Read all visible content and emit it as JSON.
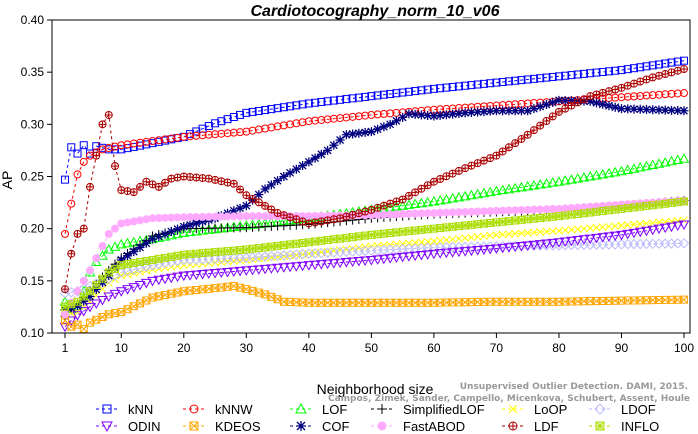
{
  "chart_data": {
    "type": "line",
    "title": "Cardiotocography_norm_10_v06",
    "xlabel": "Neighborhood size",
    "ylabel": "AP",
    "xlim": [
      1,
      100
    ],
    "ylim": [
      0.1,
      0.4
    ],
    "xticks": [
      "1",
      "10",
      "20",
      "30",
      "40",
      "50",
      "60",
      "70",
      "80",
      "90",
      "100"
    ],
    "yticks": [
      "0.10",
      "0.15",
      "0.20",
      "0.25",
      "0.30",
      "0.35",
      "0.40"
    ],
    "grid": false,
    "legend_position": "bottom",
    "series": [
      {
        "name": "kNN",
        "color": "#0000ff",
        "marker": "square",
        "points": [
          [
            1,
            0.247
          ],
          [
            2,
            0.278
          ],
          [
            3,
            0.272
          ],
          [
            4,
            0.28
          ],
          [
            5,
            0.272
          ],
          [
            6,
            0.279
          ],
          [
            8,
            0.276
          ],
          [
            10,
            0.276
          ],
          [
            15,
            0.282
          ],
          [
            20,
            0.288
          ],
          [
            25,
            0.301
          ],
          [
            30,
            0.311
          ],
          [
            40,
            0.32
          ],
          [
            50,
            0.327
          ],
          [
            60,
            0.334
          ],
          [
            70,
            0.34
          ],
          [
            80,
            0.346
          ],
          [
            90,
            0.352
          ],
          [
            100,
            0.361
          ]
        ]
      },
      {
        "name": "kNNW",
        "color": "#ff0000",
        "marker": "circle",
        "points": [
          [
            1,
            0.195
          ],
          [
            2,
            0.224
          ],
          [
            3,
            0.252
          ],
          [
            4,
            0.264
          ],
          [
            5,
            0.27
          ],
          [
            7,
            0.276
          ],
          [
            10,
            0.28
          ],
          [
            15,
            0.284
          ],
          [
            20,
            0.288
          ],
          [
            30,
            0.293
          ],
          [
            40,
            0.303
          ],
          [
            50,
            0.309
          ],
          [
            60,
            0.314
          ],
          [
            70,
            0.318
          ],
          [
            80,
            0.322
          ],
          [
            90,
            0.326
          ],
          [
            100,
            0.33
          ]
        ]
      },
      {
        "name": "LOF",
        "color": "#00ff00",
        "marker": "triangle-up",
        "points": [
          [
            1,
            0.13
          ],
          [
            2,
            0.123
          ],
          [
            3,
            0.126
          ],
          [
            4,
            0.14
          ],
          [
            5,
            0.158
          ],
          [
            6,
            0.168
          ],
          [
            8,
            0.18
          ],
          [
            10,
            0.185
          ],
          [
            15,
            0.19
          ],
          [
            20,
            0.196
          ],
          [
            30,
            0.203
          ],
          [
            40,
            0.21
          ],
          [
            50,
            0.218
          ],
          [
            60,
            0.226
          ],
          [
            70,
            0.236
          ],
          [
            80,
            0.245
          ],
          [
            90,
            0.255
          ],
          [
            100,
            0.267
          ]
        ]
      },
      {
        "name": "SimplifiedLOF",
        "color": "#000000",
        "marker": "plus",
        "points": [
          [
            1,
            0.116
          ],
          [
            2,
            0.122
          ],
          [
            3,
            0.128
          ],
          [
            5,
            0.141
          ],
          [
            8,
            0.16
          ],
          [
            10,
            0.172
          ],
          [
            15,
            0.193
          ],
          [
            20,
            0.2
          ],
          [
            30,
            0.201
          ],
          [
            40,
            0.204
          ],
          [
            50,
            0.21
          ],
          [
            60,
            0.214
          ],
          [
            70,
            0.216
          ],
          [
            80,
            0.218
          ],
          [
            90,
            0.222
          ],
          [
            100,
            0.227
          ]
        ]
      },
      {
        "name": "LoOP",
        "color": "#ffff00",
        "marker": "x",
        "points": [
          [
            1,
            0.118
          ],
          [
            3,
            0.12
          ],
          [
            5,
            0.13
          ],
          [
            8,
            0.148
          ],
          [
            10,
            0.155
          ],
          [
            15,
            0.161
          ],
          [
            20,
            0.165
          ],
          [
            30,
            0.17
          ],
          [
            40,
            0.176
          ],
          [
            50,
            0.183
          ],
          [
            60,
            0.188
          ],
          [
            70,
            0.194
          ],
          [
            80,
            0.198
          ],
          [
            90,
            0.203
          ],
          [
            100,
            0.208
          ]
        ]
      },
      {
        "name": "LDOF",
        "color": "#bbbbff",
        "marker": "diamond",
        "points": [
          [
            1,
            0.138
          ],
          [
            3,
            0.14
          ],
          [
            5,
            0.145
          ],
          [
            8,
            0.152
          ],
          [
            10,
            0.158
          ],
          [
            15,
            0.165
          ],
          [
            20,
            0.17
          ],
          [
            30,
            0.172
          ],
          [
            40,
            0.176
          ],
          [
            50,
            0.179
          ],
          [
            60,
            0.182
          ],
          [
            70,
            0.183
          ],
          [
            80,
            0.184
          ],
          [
            90,
            0.185
          ],
          [
            100,
            0.186
          ]
        ]
      },
      {
        "name": "ODIN",
        "color": "#8000ff",
        "marker": "triangle-down",
        "points": [
          [
            1,
            0.106
          ],
          [
            2,
            0.112
          ],
          [
            3,
            0.117
          ],
          [
            5,
            0.125
          ],
          [
            8,
            0.135
          ],
          [
            10,
            0.14
          ],
          [
            15,
            0.15
          ],
          [
            20,
            0.155
          ],
          [
            30,
            0.16
          ],
          [
            40,
            0.165
          ],
          [
            50,
            0.17
          ],
          [
            60,
            0.176
          ],
          [
            70,
            0.181
          ],
          [
            80,
            0.187
          ],
          [
            90,
            0.194
          ],
          [
            100,
            0.204
          ]
        ]
      },
      {
        "name": "KDEOS",
        "color": "#ffa500",
        "marker": "square-x",
        "points": [
          [
            1,
            0.112
          ],
          [
            2,
            0.106
          ],
          [
            3,
            0.108
          ],
          [
            4,
            0.104
          ],
          [
            5,
            0.11
          ],
          [
            8,
            0.118
          ],
          [
            10,
            0.12
          ],
          [
            15,
            0.134
          ],
          [
            20,
            0.14
          ],
          [
            25,
            0.143
          ],
          [
            28,
            0.145
          ],
          [
            30,
            0.142
          ],
          [
            33,
            0.137
          ],
          [
            36,
            0.13
          ],
          [
            40,
            0.129
          ],
          [
            50,
            0.129
          ],
          [
            60,
            0.129
          ],
          [
            70,
            0.13
          ],
          [
            80,
            0.13
          ],
          [
            90,
            0.131
          ],
          [
            100,
            0.132
          ]
        ]
      },
      {
        "name": "COF",
        "color": "#000080",
        "marker": "asterisk",
        "points": [
          [
            1,
            0.122
          ],
          [
            3,
            0.126
          ],
          [
            5,
            0.135
          ],
          [
            8,
            0.155
          ],
          [
            10,
            0.17
          ],
          [
            15,
            0.19
          ],
          [
            20,
            0.202
          ],
          [
            25,
            0.21
          ],
          [
            30,
            0.222
          ],
          [
            33,
            0.238
          ],
          [
            36,
            0.25
          ],
          [
            40,
            0.264
          ],
          [
            43,
            0.275
          ],
          [
            46,
            0.29
          ],
          [
            50,
            0.293
          ],
          [
            53,
            0.3
          ],
          [
            56,
            0.31
          ],
          [
            60,
            0.308
          ],
          [
            65,
            0.311
          ],
          [
            70,
            0.313
          ],
          [
            75,
            0.313
          ],
          [
            80,
            0.323
          ],
          [
            85,
            0.322
          ],
          [
            90,
            0.315
          ],
          [
            95,
            0.314
          ],
          [
            100,
            0.313
          ]
        ]
      },
      {
        "name": "FastABOD",
        "color": "#ffaaff",
        "marker": "circle-filled",
        "points": [
          [
            1,
            0.118
          ],
          [
            3,
            0.14
          ],
          [
            5,
            0.16
          ],
          [
            8,
            0.195
          ],
          [
            10,
            0.205
          ],
          [
            15,
            0.21
          ],
          [
            20,
            0.211
          ],
          [
            30,
            0.212
          ],
          [
            40,
            0.212
          ],
          [
            50,
            0.213
          ],
          [
            60,
            0.215
          ],
          [
            70,
            0.217
          ],
          [
            80,
            0.219
          ],
          [
            90,
            0.223
          ],
          [
            100,
            0.227
          ]
        ]
      },
      {
        "name": "LDF",
        "color": "#aa0000",
        "marker": "circle-plus",
        "points": [
          [
            1,
            0.142
          ],
          [
            2,
            0.176
          ],
          [
            3,
            0.195
          ],
          [
            4,
            0.2
          ],
          [
            5,
            0.24
          ],
          [
            6,
            0.27
          ],
          [
            7,
            0.3
          ],
          [
            8,
            0.309
          ],
          [
            9,
            0.26
          ],
          [
            10,
            0.237
          ],
          [
            12,
            0.235
          ],
          [
            14,
            0.245
          ],
          [
            16,
            0.24
          ],
          [
            18,
            0.248
          ],
          [
            20,
            0.25
          ],
          [
            24,
            0.248
          ],
          [
            28,
            0.243
          ],
          [
            30,
            0.232
          ],
          [
            35,
            0.215
          ],
          [
            40,
            0.205
          ],
          [
            45,
            0.21
          ],
          [
            50,
            0.218
          ],
          [
            55,
            0.228
          ],
          [
            60,
            0.245
          ],
          [
            65,
            0.258
          ],
          [
            70,
            0.27
          ],
          [
            75,
            0.29
          ],
          [
            80,
            0.312
          ],
          [
            85,
            0.327
          ],
          [
            90,
            0.335
          ],
          [
            95,
            0.345
          ],
          [
            100,
            0.353
          ]
        ]
      },
      {
        "name": "INFLO",
        "color": "#aadd00",
        "marker": "star-square",
        "points": [
          [
            1,
            0.125
          ],
          [
            3,
            0.13
          ],
          [
            5,
            0.14
          ],
          [
            8,
            0.158
          ],
          [
            10,
            0.165
          ],
          [
            15,
            0.17
          ],
          [
            20,
            0.175
          ],
          [
            30,
            0.18
          ],
          [
            40,
            0.187
          ],
          [
            50,
            0.194
          ],
          [
            60,
            0.2
          ],
          [
            70,
            0.206
          ],
          [
            80,
            0.212
          ],
          [
            90,
            0.219
          ],
          [
            100,
            0.226
          ]
        ]
      }
    ]
  },
  "credit": {
    "line1": "Campos, Zimek, Sander, Campello, Micenkova, Schubert, Assent, Houle",
    "line2": "Unsupervised Outlier Detection. DAMI, 2015."
  }
}
